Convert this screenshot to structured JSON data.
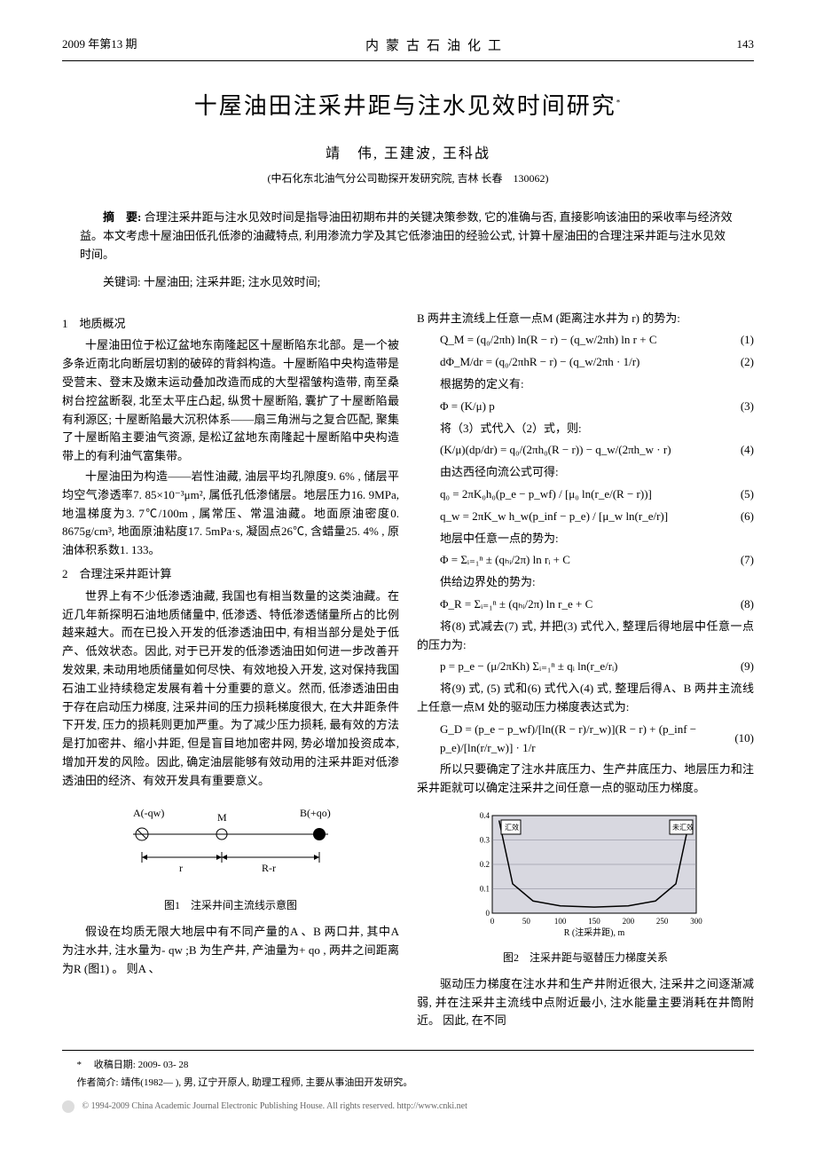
{
  "header": {
    "issue": "2009 年第13 期",
    "journal": "内蒙古石油化工",
    "page": "143"
  },
  "title": "十屋油田注采井距与注水见效时间研究",
  "title_sup": "*",
  "authors": "靖　伟, 王建波, 王科战",
  "affiliation": "(中石化东北油气分公司勘探开发研究院, 吉林 长春　130062)",
  "abstract_label": "摘　要:",
  "abstract": "合理注采井距与注水见效时间是指导油田初期布井的关键决策参数, 它的准确与否, 直接影响该油田的采收率与经济效益。本文考虑十屋油田低孔低渗的油藏特点, 利用渗流力学及其它低渗油田的经验公式, 计算十屋油田的合理注采井距与注水见效时间。",
  "keywords_label": "关键词:",
  "keywords": "十屋油田; 注采井距; 注水见效时间;",
  "left": {
    "sec1_head": "1　地质概况",
    "sec1_p1": "十屋油田位于松辽盆地东南隆起区十屋断陷东北部。是一个被多条近南北向断层切割的破碎的背斜构造。十屋断陷中央构造带是受营末、登末及嫩末运动叠加改造而成的大型褶皱构造带, 南至桑树台控盆断裂, 北至太平庄凸起, 纵贯十屋断陷, 囊扩了十屋断陷最有利源区; 十屋断陷最大沉积体系——扇三角洲与之复合匹配, 聚集了十屋断陷主要油气资源, 是松辽盆地东南隆起十屋断陷中央构造带上的有利油气富集带。",
    "sec1_p2": "十屋油田为构造——岩性油藏, 油层平均孔隙度9. 6% , 储层平均空气渗透率7. 85×10⁻³μm², 属低孔低渗储层。地层压力16. 9MPa, 地温梯度为3. 7℃/100m , 属常压、常温油藏。地面原油密度0. 8675g/cm³, 地面原油粘度17. 5mPa·s, 凝固点26℃, 含蜡量25. 4% , 原油体积系数1. 133。",
    "sec2_head": "2　合理注采井距计算",
    "sec2_p1": "世界上有不少低渗透油藏, 我国也有相当数量的这类油藏。在近几年新探明石油地质储量中, 低渗透、特低渗透储量所占的比例越来越大。而在已投入开发的低渗透油田中, 有相当部分是处于低产、低效状态。因此, 对于已开发的低渗透油田如何进一步改善开发效果, 未动用地质储量如何尽快、有效地投入开发, 这对保持我国石油工业持续稳定发展有着十分重要的意义。然而, 低渗透油田由于存在启动压力梯度, 注采井间的压力损耗梯度很大, 在大井距条件下开发, 压力的损耗则更加严重。为了减少压力损耗, 最有效的方法是打加密井、缩小井距, 但是盲目地加密井网, 势必增加投资成本, 增加开发的风险。因此, 确定油层能够有效动用的注采井距对低渗透油田的经济、有效开发具有重要意义。",
    "fig1_caption": "图1　注采井间主流线示意图",
    "fig1": {
      "labelA": "A(-qw)",
      "labelM": "M",
      "labelB": "B(+qo)",
      "label_r": "r",
      "label_Rr": "R-r",
      "stroke": "#000000"
    },
    "sec2_p2": "假设在均质无限大地层中有不同产量的A 、B 两口井, 其中A 为注水井, 注水量为- qw ;B 为生产井, 产油量为+ qo , 两井之间距离为R (图1) 。 则A 、"
  },
  "right": {
    "intro": "B 两井主流线上任意一点M (距离注水井为 r) 的势为:",
    "eq1": {
      "body": "Q_M = (q₀/2πh) ln(R − r) − (q_w/2πh) ln r + C",
      "num": "(1)"
    },
    "eq2": {
      "body": "dΦ_M/dr = (q₀/2πhR − r) − (q_w/2πh · 1/r)",
      "num": "(2)"
    },
    "line_def": "根据势的定义有:",
    "eq3": {
      "body": "Φ = (K/μ) p",
      "num": "(3)"
    },
    "line_sub32": "将（3）式代入（2）式，则:",
    "eq4": {
      "body": "(K/μ)(dp/dr) = q₀/(2πh₀(R − r)) − q_w/(2πh_w · r)",
      "num": "(4)"
    },
    "line_darcy": "由达西径向流公式可得:",
    "eq5": {
      "body": "q₀ = 2πK₀h₀(p_e − p_wf) / [μ₀ ln(r_e/(R − r))]",
      "num": "(5)"
    },
    "eq6": {
      "body": "q_w = 2πK_w h_w(p_inf − p_e) / [μ_w ln(r_e/r)]",
      "num": "(6)"
    },
    "line_any": "地层中任意一点的势为:",
    "eq7": {
      "body": "Φ = Σᵢ₌₁ⁿ ± (qₕᵢ/2π) ln rᵢ + C",
      "num": "(7)"
    },
    "line_supply": "供给边界处的势为:",
    "eq8": {
      "body": "Φ_R = Σᵢ₌₁ⁿ ± (qₕᵢ/2π) ln r_e + C",
      "num": "(8)"
    },
    "line_sub87": "将(8) 式减去(7) 式, 并把(3) 式代入, 整理后得地层中任意一点的压力为:",
    "eq9": {
      "body": "p = p_e − (μ/2πKh) Σᵢ₌₁ⁿ ± qᵢ ln(r_e/rᵢ)",
      "num": "(9)"
    },
    "line_sub956": "将(9) 式, (5) 式和(6) 式代入(4) 式, 整理后得A、B 两井主流线上任意一点M 处的驱动压力梯度表达式为:",
    "eq10": {
      "body": "G_D = (p_e − p_wf)/[ln((R − r)/r_w)](R − r) + (p_inf − p_e)/[ln(r/r_w)] · 1/r",
      "num": "(10)"
    },
    "after10": "所以只要确定了注水井底压力、生产井底压力、地层压力和注采井距就可以确定注采井之间任意一点的驱动压力梯度。",
    "fig2_caption": "图2　注采井距与驱替压力梯度关系",
    "fig2": {
      "xlabel": "R (注采井距), m",
      "x_ticks": [
        "0",
        "50",
        "100",
        "150",
        "200",
        "250",
        "300"
      ],
      "y_ticks": [
        "0",
        "0.1",
        "0.2",
        "0.3",
        "0.4"
      ],
      "legend_left": "汇效",
      "legend_right": "未汇效",
      "bg": "#d8d8e0",
      "curve_color": "#000000",
      "grid_color": "#808090",
      "points_x": [
        10,
        30,
        60,
        100,
        150,
        200,
        240,
        270,
        290
      ],
      "points_y": [
        0.38,
        0.12,
        0.05,
        0.03,
        0.025,
        0.03,
        0.05,
        0.12,
        0.38
      ]
    },
    "after_fig2": "驱动压力梯度在注水井和生产井附近很大, 注采井之间逐渐减弱, 并在注采井主流线中点附近最小, 注水能量主要消耗在井筒附近。 因此, 在不同"
  },
  "footer": {
    "mark": "*",
    "received_label": "收稿日期:",
    "received": "2009- 03- 28",
    "bio_label": "作者简介:",
    "bio": "靖伟(1982— ), 男, 辽宁开原人, 助理工程师, 主要从事油田开发研究。",
    "copyright": "© 1994-2009 China Academic Journal Electronic Publishing House. All rights reserved.    http://www.cnki.net"
  }
}
